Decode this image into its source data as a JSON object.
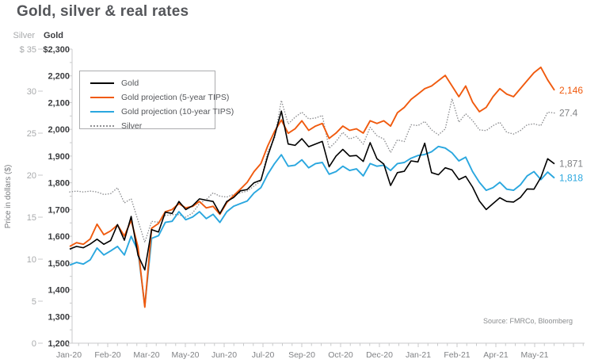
{
  "title": "Gold, silver & real rates",
  "source": "Source: FMRCo, Bloomberg",
  "colors": {
    "title_text": "#54565A",
    "gold_axis_text": "#3B3C3F",
    "silver_axis_text": "#A8AAAC",
    "x_axis_text": "#808285",
    "axis_line": "#C9CACB",
    "legend_border": "#ABACAE",
    "gray_label": "#808285",
    "source_text": "#8A8C8E"
  },
  "axes": {
    "silver_col_header": "Silver",
    "gold_col_header": "Gold",
    "silver_ticks": [
      "$ 35",
      "30",
      "25",
      "20",
      "15",
      "10",
      "5",
      "0"
    ],
    "gold_ticks": [
      "$2,300",
      "2,200",
      "2,100",
      "2,000",
      "1,900",
      "1,800",
      "1,700",
      "1,600",
      "1,500",
      "1,400",
      "1,300",
      "1,200"
    ],
    "x_ticks": [
      "Jan-20",
      "Feb-20",
      "Mar-20",
      "May-20",
      "Jun-20",
      "Jul-20",
      "Sep-20",
      "Oct-20",
      "Dec-20",
      "Jan-21",
      "Feb-21",
      "Apr-21",
      "May-21"
    ],
    "y_title": "Price in dollars ($)"
  },
  "chart_data": {
    "type": "line",
    "title": "Gold, silver & real rates",
    "x_range": "Jan-2020 to mid-May-2021, weekly points",
    "gold_axis": {
      "label": "Gold",
      "ylim": [
        1200,
        2300
      ],
      "tick_step": 100
    },
    "silver_axis": {
      "label": "Silver",
      "ylim": [
        0,
        35
      ],
      "tick_step": 5
    },
    "grid": false,
    "legend_position": "top-left box",
    "series": [
      {
        "name": "Gold",
        "axis": "gold",
        "color": "#000000",
        "style": "solid",
        "end_label": "1,871",
        "end_label_color": "#808285",
        "values": [
          1552,
          1562,
          1557,
          1571,
          1589,
          1570,
          1584,
          1644,
          1585,
          1674,
          1529,
          1474,
          1625,
          1616,
          1690,
          1685,
          1730,
          1700,
          1714,
          1740,
          1735,
          1730,
          1685,
          1730,
          1745,
          1770,
          1775,
          1800,
          1810,
          1900,
          1975,
          2068,
          1945,
          1940,
          1965,
          1935,
          1945,
          1955,
          1860,
          1900,
          1925,
          1900,
          1902,
          1880,
          1950,
          1890,
          1870,
          1790,
          1838,
          1843,
          1882,
          1878,
          1948,
          1838,
          1830,
          1856,
          1848,
          1812,
          1824,
          1784,
          1732,
          1700,
          1722,
          1744,
          1730,
          1728,
          1745,
          1777,
          1776,
          1820,
          1890,
          1871
        ]
      },
      {
        "name": "Gold projection (5-year TIPS)",
        "axis": "gold",
        "color": "#F05A0E",
        "style": "solid",
        "end_label": "2,146",
        "end_label_color": "#F05A0E",
        "values": [
          1562,
          1576,
          1570,
          1590,
          1645,
          1606,
          1620,
          1642,
          1601,
          1660,
          1560,
          1335,
          1630,
          1648,
          1692,
          1700,
          1722,
          1706,
          1712,
          1730,
          1706,
          1712,
          1682,
          1726,
          1752,
          1776,
          1802,
          1842,
          1872,
          1938,
          1992,
          2035,
          1985,
          2002,
          2032,
          1996,
          2012,
          2022,
          1966,
          1986,
          2012,
          1996,
          2002,
          1986,
          2032,
          2022,
          2032,
          2012,
          2062,
          2082,
          2112,
          2132,
          2152,
          2162,
          2182,
          2202,
          2162,
          2122,
          2162,
          2102,
          2066,
          2082,
          2122,
          2152,
          2132,
          2122,
          2152,
          2182,
          2212,
          2232,
          2185,
          2146
        ]
      },
      {
        "name": "Gold projection (10-year TIPS)",
        "axis": "gold",
        "color": "#2AA7DF",
        "style": "solid",
        "end_label": "1,818",
        "end_label_color": "#2AA7DF",
        "values": [
          1492,
          1502,
          1496,
          1512,
          1556,
          1530,
          1545,
          1562,
          1530,
          1600,
          1545,
          1340,
          1592,
          1602,
          1652,
          1656,
          1692,
          1662,
          1672,
          1692,
          1666,
          1682,
          1652,
          1692,
          1712,
          1722,
          1732,
          1762,
          1782,
          1832,
          1872,
          1905,
          1862,
          1866,
          1886,
          1856,
          1872,
          1876,
          1832,
          1842,
          1862,
          1846,
          1852,
          1826,
          1872,
          1862,
          1866,
          1846,
          1872,
          1876,
          1892,
          1902,
          1906,
          1916,
          1936,
          1930,
          1912,
          1882,
          1896,
          1842,
          1802,
          1772,
          1782,
          1802,
          1776,
          1772,
          1792,
          1826,
          1842,
          1812,
          1840,
          1818
        ]
      },
      {
        "name": "Silver",
        "axis": "silver",
        "color": "#909194",
        "style": "dotted",
        "end_label": "27.4",
        "end_label_color": "#808285",
        "values": [
          18.0,
          18.1,
          18.0,
          18.1,
          18.0,
          17.7,
          17.8,
          18.5,
          16.7,
          17.2,
          14.6,
          12.0,
          14.5,
          14.4,
          15.2,
          15.3,
          15.3,
          15.0,
          15.5,
          16.6,
          17.1,
          17.9,
          17.5,
          17.4,
          17.7,
          17.9,
          18.1,
          18.7,
          19.3,
          22.8,
          24.4,
          28.9,
          26.1,
          26.9,
          27.5,
          26.7,
          26.8,
          27.1,
          23.2,
          24.0,
          25.1,
          24.3,
          24.6,
          23.7,
          25.7,
          24.7,
          24.3,
          22.7,
          24.2,
          24.0,
          26.0,
          25.9,
          26.4,
          25.4,
          24.8,
          25.5,
          29.1,
          26.3,
          27.3,
          26.5,
          25.4,
          25.3,
          25.9,
          26.3,
          25.1,
          24.9,
          25.3,
          26.0,
          26.1,
          25.9,
          27.5,
          27.4
        ]
      }
    ]
  }
}
